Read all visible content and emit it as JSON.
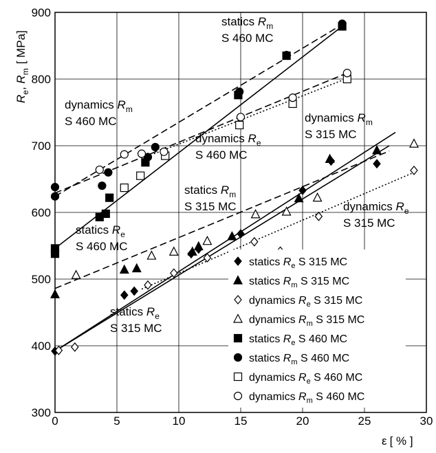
{
  "chart_data": {
    "type": "scatter",
    "xlabel_symbol": "ε",
    "xlabel_unit": "[ % ]",
    "ylabel_main": "R",
    "ylabel_sub1": "e",
    "ylabel_sep": ", ",
    "ylabel_sub2": "m",
    "ylabel_unit": "[ MPa]",
    "xlim": [
      0,
      30
    ],
    "ylim": [
      300,
      900
    ],
    "x_ticks": [
      0,
      5,
      10,
      15,
      20,
      25,
      30
    ],
    "y_ticks": [
      300,
      400,
      500,
      600,
      700,
      800,
      900
    ],
    "grid": true,
    "legend_position": "bottom-right",
    "series": [
      {
        "key": "s_re_315",
        "name_a": "statics ",
        "name_b": "R",
        "name_sub": "e",
        "name_c": " S 315 MC",
        "marker": "diamond",
        "filled": true,
        "points": [
          [
            0,
            392
          ],
          [
            5.6,
            476
          ],
          [
            6.4,
            482
          ],
          [
            11,
            538
          ],
          [
            11.6,
            545
          ],
          [
            15,
            568
          ],
          [
            20,
            633
          ],
          [
            22.3,
            677
          ],
          [
            26,
            673
          ]
        ],
        "fit": {
          "style": "solid",
          "x": [
            0,
            27
          ],
          "y": [
            392,
            700
          ]
        }
      },
      {
        "key": "s_rm_315",
        "name_a": "statics ",
        "name_b": "R",
        "name_sub": "m",
        "name_c": " S 315 MC",
        "marker": "triangle",
        "filled": true,
        "points": [
          [
            0,
            477
          ],
          [
            5.6,
            514
          ],
          [
            6.6,
            516
          ],
          [
            11.1,
            541
          ],
          [
            11.6,
            549
          ],
          [
            14.3,
            564
          ],
          [
            19.7,
            621
          ],
          [
            22.2,
            680
          ],
          [
            26,
            693
          ]
        ],
        "fit": {
          "style": "solid",
          "x": [
            0,
            27.5
          ],
          "y": [
            392,
            720
          ]
        }
      },
      {
        "key": "d_re_315",
        "name_a": "dynamics ",
        "name_b": "R",
        "name_sub": "e",
        "name_c": " S 315 MC",
        "marker": "diamond",
        "filled": false,
        "points": [
          [
            0.3,
            393
          ],
          [
            1.6,
            398
          ],
          [
            7.5,
            491
          ],
          [
            9.6,
            509
          ],
          [
            12.3,
            532
          ],
          [
            16.1,
            556
          ],
          [
            18.2,
            542
          ],
          [
            21.3,
            594
          ],
          [
            29,
            663
          ]
        ],
        "fit": {
          "style": "dotted",
          "x": [
            7,
            29
          ],
          "y": [
            485,
            660
          ]
        }
      },
      {
        "key": "d_rm_315",
        "name_a": "dynamics ",
        "name_b": "R",
        "name_sub": "m",
        "name_c": " S 315 MC",
        "marker": "triangle",
        "filled": false,
        "points": [
          [
            1.7,
            506
          ],
          [
            7.8,
            535
          ],
          [
            9.6,
            541
          ],
          [
            12.3,
            557
          ],
          [
            16.2,
            597
          ],
          [
            18.7,
            601
          ],
          [
            21.2,
            622
          ],
          [
            29,
            703
          ]
        ],
        "fit": {
          "style": "dashed",
          "x": [
            0,
            27
          ],
          "y": [
            486,
            692
          ]
        }
      },
      {
        "key": "s_re_460",
        "name_a": "statics ",
        "name_b": "R",
        "name_sub": "e",
        "name_c": " S 460 MC",
        "marker": "square",
        "filled": true,
        "points": [
          [
            0,
            538
          ],
          [
            0,
            546
          ],
          [
            3.6,
            593
          ],
          [
            4.1,
            598
          ],
          [
            4.4,
            622
          ],
          [
            7.3,
            675
          ],
          [
            14.8,
            776
          ],
          [
            18.7,
            835
          ],
          [
            23.2,
            879
          ]
        ],
        "fit": {
          "style": "solid",
          "x": [
            0,
            23.4
          ],
          "y": [
            546,
            882
          ]
        }
      },
      {
        "key": "s_rm_460",
        "name_a": "statics ",
        "name_b": "R",
        "name_sub": "m",
        "name_c": " S 460 MC",
        "marker": "circle",
        "filled": true,
        "points": [
          [
            0,
            624
          ],
          [
            0,
            638
          ],
          [
            3.8,
            640
          ],
          [
            4.3,
            660
          ],
          [
            7.5,
            683
          ],
          [
            8.1,
            698
          ],
          [
            14.9,
            781
          ],
          [
            18.7,
            836
          ],
          [
            23.2,
            883
          ]
        ],
        "fit": {
          "style": "dashed",
          "x": [
            0,
            23.4
          ],
          "y": [
            624,
            884
          ]
        }
      },
      {
        "key": "d_re_460",
        "name_a": "dynamics ",
        "name_b": "R",
        "name_sub": "e",
        "name_c": " S 460 MC",
        "marker": "square",
        "filled": false,
        "points": [
          [
            5.6,
            637
          ],
          [
            6.9,
            655
          ],
          [
            8.9,
            685
          ],
          [
            14.9,
            731
          ],
          [
            19.2,
            763
          ],
          [
            23.6,
            800
          ]
        ],
        "fit": {
          "style": "dotted",
          "x": [
            8,
            23.6
          ],
          "y": [
            688,
            801
          ]
        }
      },
      {
        "key": "d_rm_460",
        "name_a": "dynamics ",
        "name_b": "R",
        "name_sub": "m",
        "name_c": " S 460 MC",
        "marker": "circle",
        "filled": false,
        "points": [
          [
            3.6,
            664
          ],
          [
            5.6,
            687
          ],
          [
            7,
            688
          ],
          [
            8.8,
            691
          ],
          [
            15,
            743
          ],
          [
            19.2,
            772
          ],
          [
            23.6,
            809
          ]
        ],
        "fit": {
          "style": "dashed",
          "x": [
            0,
            23.6
          ],
          "y": [
            629,
            809
          ]
        }
      }
    ],
    "annotations": [
      {
        "key": "a1",
        "line1a": "statics ",
        "line1b": "R",
        "line1sub": "m",
        "line2": "S 460 MC"
      },
      {
        "key": "a2",
        "line1a": "dynamics ",
        "line1b": "R",
        "line1sub": "m",
        "line2": "S 460 MC"
      },
      {
        "key": "a3",
        "line1a": "dynamics ",
        "line1b": "R",
        "line1sub": "e",
        "line2": "S 460 MC"
      },
      {
        "key": "a4",
        "line1a": "dynamics ",
        "line1b": "R",
        "line1sub": "m",
        "line2": "S 315 MC"
      },
      {
        "key": "a5",
        "line1a": "statics ",
        "line1b": "R",
        "line1sub": "m",
        "line2": "S 315 MC"
      },
      {
        "key": "a6",
        "line1a": "dynamics ",
        "line1b": "R",
        "line1sub": "e",
        "line2": "S 315 MC"
      },
      {
        "key": "a7",
        "line1a": "statics ",
        "line1b": "R",
        "line1sub": "e",
        "line2": "S 460 MC"
      },
      {
        "key": "a8",
        "line1a": "statics ",
        "line1b": "R",
        "line1sub": "e",
        "line2": "S 315 MC"
      }
    ]
  }
}
